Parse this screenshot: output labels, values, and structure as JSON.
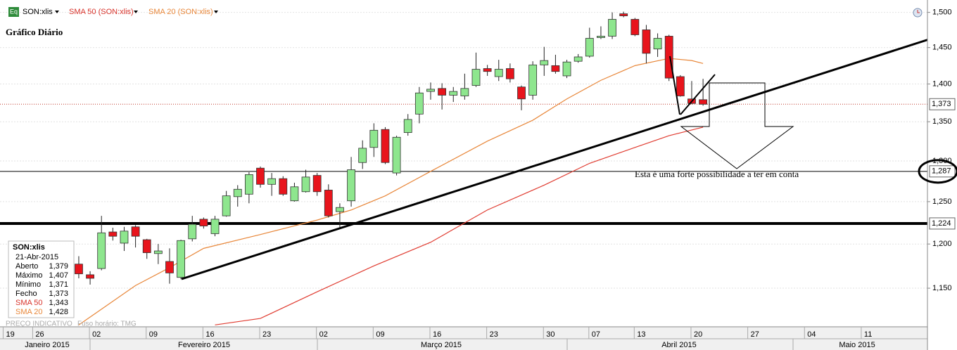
{
  "chart_data": {
    "type": "candlestick",
    "title": "Gráfico Diário",
    "header": {
      "symbol": "SON:xlis",
      "sma50": "SMA 50 (SON:xlis)",
      "sma20": "SMA 20 (SON:xlis)",
      "icon": "Eq"
    },
    "annotation": "Esta é uma forte possibilidade a ter em conta",
    "footer": {
      "note": "PREÇO INDICATIVO",
      "timezone": "Fuso horário: TMG"
    },
    "info_box": {
      "symbol": "SON:xlis",
      "date": "21-Abr-2015",
      "rows": [
        [
          "Aberto",
          "1,379"
        ],
        [
          "Máximo",
          "1,407"
        ],
        [
          "Mínimo",
          "1,371"
        ],
        [
          "Fecho",
          "1,373"
        ],
        [
          "SMA 50",
          "1,343"
        ],
        [
          "SMA 20",
          "1,428"
        ]
      ]
    },
    "x": [
      0,
      1,
      2,
      3,
      4,
      5,
      6,
      7,
      8,
      9,
      10,
      11,
      12,
      13,
      14,
      15,
      16,
      17,
      18,
      19,
      20,
      21,
      22,
      23,
      24,
      25,
      26,
      27,
      28,
      29,
      30,
      31,
      32,
      33,
      34,
      35,
      36,
      37,
      38,
      39,
      40,
      41,
      42,
      43,
      44,
      45,
      46,
      47,
      48,
      49,
      50,
      51,
      52,
      53,
      54,
      55
    ],
    "open": [
      1.177,
      1.165,
      1.172,
      1.214,
      1.201,
      1.22,
      1.205,
      1.189,
      1.18,
      1.162,
      1.206,
      1.229,
      1.212,
      1.233,
      1.256,
      1.259,
      1.291,
      1.271,
      1.278,
      1.251,
      1.262,
      1.282,
      1.264,
      1.238,
      1.251,
      1.298,
      1.317,
      1.34,
      1.285,
      1.336,
      1.36,
      1.39,
      1.394,
      1.385,
      1.384,
      1.398,
      1.421,
      1.41,
      1.421,
      1.396,
      1.385,
      1.426,
      1.425,
      1.411,
      1.431,
      1.438,
      1.464,
      1.466,
      1.498,
      1.49,
      1.475,
      1.448,
      1.466,
      1.41,
      1.38,
      1.379
    ],
    "high": [
      1.186,
      1.169,
      1.233,
      1.219,
      1.22,
      1.222,
      1.206,
      1.2,
      1.195,
      1.205,
      1.233,
      1.231,
      1.233,
      1.263,
      1.27,
      1.286,
      1.293,
      1.285,
      1.281,
      1.273,
      1.289,
      1.285,
      1.271,
      1.248,
      1.305,
      1.326,
      1.348,
      1.343,
      1.332,
      1.36,
      1.396,
      1.402,
      1.401,
      1.396,
      1.414,
      1.443,
      1.426,
      1.433,
      1.428,
      1.398,
      1.431,
      1.451,
      1.44,
      1.433,
      1.441,
      1.478,
      1.48,
      1.5,
      1.501,
      1.492,
      1.482,
      1.47,
      1.468,
      1.412,
      1.404,
      1.407
    ],
    "low": [
      1.161,
      1.154,
      1.17,
      1.204,
      1.192,
      1.196,
      1.183,
      1.177,
      1.155,
      1.16,
      1.203,
      1.218,
      1.209,
      1.232,
      1.244,
      1.248,
      1.267,
      1.257,
      1.257,
      1.25,
      1.261,
      1.257,
      1.231,
      1.218,
      1.244,
      1.29,
      1.305,
      1.296,
      1.282,
      1.332,
      1.348,
      1.379,
      1.366,
      1.376,
      1.379,
      1.396,
      1.411,
      1.404,
      1.402,
      1.365,
      1.379,
      1.411,
      1.414,
      1.408,
      1.429,
      1.436,
      1.462,
      1.462,
      1.493,
      1.466,
      1.428,
      1.437,
      1.404,
      1.383,
      1.373,
      1.371
    ],
    "close": [
      1.166,
      1.161,
      1.213,
      1.209,
      1.215,
      1.209,
      1.19,
      1.192,
      1.167,
      1.204,
      1.223,
      1.221,
      1.229,
      1.257,
      1.265,
      1.283,
      1.271,
      1.278,
      1.259,
      1.268,
      1.28,
      1.262,
      1.233,
      1.243,
      1.289,
      1.316,
      1.339,
      1.298,
      1.33,
      1.353,
      1.388,
      1.393,
      1.385,
      1.39,
      1.394,
      1.42,
      1.417,
      1.42,
      1.407,
      1.38,
      1.426,
      1.432,
      1.417,
      1.43,
      1.437,
      1.463,
      1.466,
      1.49,
      1.495,
      1.468,
      1.442,
      1.463,
      1.408,
      1.384,
      1.374,
      1.373
    ],
    "up_color": "#8ee68e",
    "down_color": "#e8141c",
    "series": [
      {
        "name": "SMA 20",
        "color": "#e8873a",
        "x": [
          0,
          5,
          8,
          11,
          16,
          21,
          24,
          27,
          31,
          36,
          40,
          43,
          46,
          49,
          52,
          54,
          55
        ],
        "values": [
          1.11,
          1.153,
          1.173,
          1.195,
          1.211,
          1.228,
          1.24,
          1.257,
          1.287,
          1.325,
          1.352,
          1.38,
          1.405,
          1.425,
          1.435,
          1.432,
          1.428
        ]
      },
      {
        "name": "SMA 50",
        "color": "#e03c31",
        "x": [
          12,
          16,
          21,
          26,
          31,
          36,
          41,
          45,
          49,
          52,
          55
        ],
        "values": [
          1.11,
          1.117,
          1.146,
          1.175,
          1.202,
          1.24,
          1.27,
          1.297,
          1.317,
          1.332,
          1.343
        ]
      }
    ],
    "xlim": [
      -6.94,
      74.77
    ],
    "xticks": [
      {
        "value": -6.6,
        "label": "19"
      },
      {
        "value": -4,
        "label": "26"
      },
      {
        "value": 1,
        "label": "02"
      },
      {
        "value": 6,
        "label": "09"
      },
      {
        "value": 11,
        "label": "16"
      },
      {
        "value": 16,
        "label": "23"
      },
      {
        "value": 21,
        "label": "02"
      },
      {
        "value": 26,
        "label": "09"
      },
      {
        "value": 31,
        "label": "16"
      },
      {
        "value": 36,
        "label": "23"
      },
      {
        "value": 41,
        "label": "30"
      },
      {
        "value": 45,
        "label": "07"
      },
      {
        "value": 49,
        "label": "13"
      },
      {
        "value": 54,
        "label": "20"
      },
      {
        "value": 59,
        "label": "27"
      },
      {
        "value": 64,
        "label": "04"
      },
      {
        "value": 69,
        "label": "11"
      }
    ],
    "months": [
      "Janeiro 2015",
      "Fevereiro 2015",
      "Março 2015",
      "Abril 2015",
      "Maio 2015"
    ],
    "ylim": [
      1.108,
      1.518
    ],
    "log_scale": true,
    "grid": true,
    "yticks": [
      {
        "value": 1.5,
        "label": "1,500"
      },
      {
        "value": 1.45,
        "label": "1,450"
      },
      {
        "value": 1.4,
        "label": "1,400"
      },
      {
        "value": 1.35,
        "label": "1,350"
      },
      {
        "value": 1.3,
        "label": "1,300"
      },
      {
        "value": 1.25,
        "label": "1,250"
      },
      {
        "value": 1.2,
        "label": "1,200"
      },
      {
        "value": 1.15,
        "label": "1,150"
      }
    ],
    "price_lines": [
      {
        "value": 1.373,
        "label": "1,373"
      },
      {
        "value": 1.287,
        "label": "1,287"
      },
      {
        "value": 1.224,
        "label": "1,224"
      }
    ]
  }
}
